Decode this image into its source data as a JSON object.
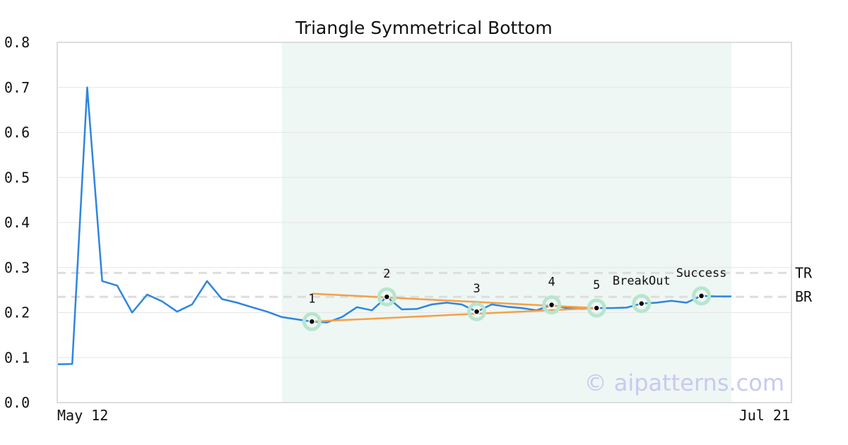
{
  "chart_data": {
    "type": "line",
    "title": "Triangle Symmetrical Bottom",
    "xlabel": "",
    "ylabel": "",
    "ylim": [
      0,
      0.8
    ],
    "y_ticks": [
      "0.0",
      "0.1",
      "0.2",
      "0.3",
      "0.4",
      "0.5",
      "0.6",
      "0.7",
      "0.8"
    ],
    "x_tick_labels": [
      "May 12",
      "Jul 21"
    ],
    "grid": true,
    "line_color": "#2e86de",
    "series": [
      {
        "values": [
          0.085,
          0.086,
          0.7,
          0.27,
          0.26,
          0.2,
          0.24,
          0.225,
          0.202,
          0.218,
          0.27,
          0.23,
          0.222,
          0.212,
          0.202,
          0.19,
          0.185,
          0.18,
          0.178,
          0.19,
          0.212,
          0.205,
          0.235,
          0.207,
          0.208,
          0.218,
          0.222,
          0.218,
          0.202,
          0.218,
          0.213,
          0.21,
          0.205,
          0.217,
          0.21,
          0.208,
          0.21,
          0.21,
          0.211,
          0.22,
          0.222,
          0.226,
          0.222,
          0.237,
          0.236,
          0.236
        ]
      }
    ],
    "highlight_region": {
      "from_index": 15,
      "to_index": 45,
      "color": "#eef7f3"
    },
    "pattern_points": [
      {
        "label": "1",
        "index": 17,
        "value": 0.18
      },
      {
        "label": "2",
        "index": 22,
        "value": 0.235
      },
      {
        "label": "3",
        "index": 28,
        "value": 0.202
      },
      {
        "label": "4",
        "index": 33,
        "value": 0.217
      },
      {
        "label": "5",
        "index": 36,
        "value": 0.21
      },
      {
        "label": "BreakOut",
        "index": 39,
        "value": 0.22
      },
      {
        "label": "Success",
        "index": 43,
        "value": 0.237
      }
    ],
    "trend_lines": [
      {
        "name": "upper",
        "from": [
          17,
          0.242
        ],
        "to": [
          36,
          0.21
        ]
      },
      {
        "name": "lower",
        "from": [
          17,
          0.18
        ],
        "to": [
          36,
          0.21
        ]
      }
    ],
    "trend_color": "#f4a04a",
    "reference_lines": [
      {
        "label": "TR",
        "value": 0.288
      },
      {
        "label": "BR",
        "value": 0.235
      }
    ],
    "watermark": "© aipatterns.com"
  }
}
